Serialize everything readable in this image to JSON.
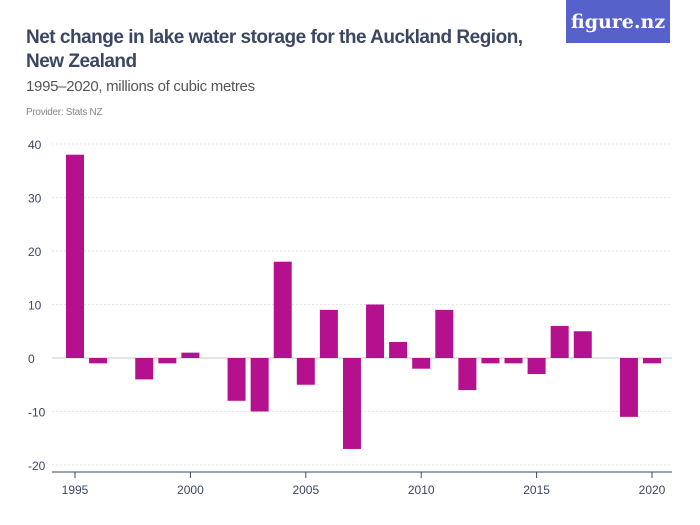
{
  "header": {
    "title": "Net change in lake water storage for the Auckland Region, New Zealand",
    "subtitle": "1995–2020, millions of cubic metres",
    "provider": "Provider: Stats NZ",
    "logo": "figure.nz"
  },
  "colors": {
    "bar": "#b5118f",
    "logo_bg": "#5661c9"
  },
  "chart_data": {
    "type": "bar",
    "title": "Net change in lake water storage for the Auckland Region, New Zealand",
    "subtitle": "1995–2020, millions of cubic metres",
    "xlabel": "",
    "ylabel": "",
    "categories": [
      1995,
      1996,
      1997,
      1998,
      1999,
      2000,
      2001,
      2002,
      2003,
      2004,
      2005,
      2006,
      2007,
      2008,
      2009,
      2010,
      2011,
      2012,
      2013,
      2014,
      2015,
      2016,
      2017,
      2018,
      2019,
      2020
    ],
    "values": [
      38,
      -1,
      0,
      -4,
      -1,
      1,
      0,
      -8,
      -10,
      18,
      -5,
      9,
      -17,
      10,
      3,
      -2,
      9,
      -6,
      -1,
      -1,
      -3,
      6,
      5,
      0,
      -11,
      -1
    ],
    "ylim": [
      -20,
      40
    ],
    "yticks": [
      "40",
      "30",
      "20",
      "10",
      "0",
      "-10",
      "-20"
    ],
    "xticks": [
      "1995",
      "2000",
      "2005",
      "2010",
      "2015",
      "2020"
    ]
  }
}
